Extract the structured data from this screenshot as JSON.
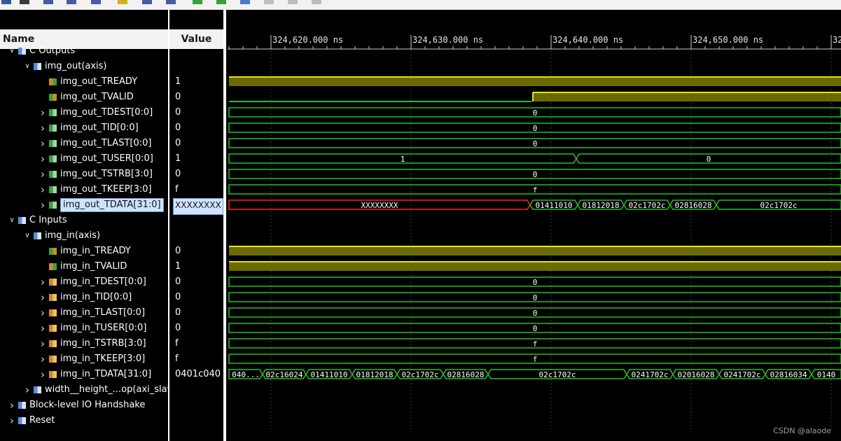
{
  "header": {
    "name_col": "Name",
    "value_col": "Value"
  },
  "timeline": {
    "ticks": [
      "324,620.000 ns",
      "324,630.000 ns",
      "324,640.000 ns",
      "324,650.000 ns",
      "32"
    ]
  },
  "rows": [
    {
      "name": "C Outputs",
      "value": "",
      "kind": "group",
      "indent": 0,
      "expander": "v",
      "icon": "group-icon"
    },
    {
      "name": "img_out(axis)",
      "value": "",
      "kind": "group",
      "indent": 1,
      "expander": "v",
      "icon": "group-icon"
    },
    {
      "name": "img_out_TREADY",
      "value": "1",
      "kind": "in",
      "indent": 2,
      "expander": "",
      "icon": "signal-in-icon"
    },
    {
      "name": "img_out_TVALID",
      "value": "0",
      "kind": "out",
      "indent": 2,
      "expander": "",
      "icon": "signal-out-icon"
    },
    {
      "name": "img_out_TDEST[0:0]",
      "value": "0",
      "kind": "bus-out",
      "indent": 2,
      "expander": ">",
      "icon": "bus-out-icon"
    },
    {
      "name": "img_out_TID[0:0]",
      "value": "0",
      "kind": "bus-out",
      "indent": 2,
      "expander": ">",
      "icon": "bus-out-icon"
    },
    {
      "name": "img_out_TLAST[0:0]",
      "value": "0",
      "kind": "bus-out",
      "indent": 2,
      "expander": ">",
      "icon": "bus-out-icon"
    },
    {
      "name": "img_out_TUSER[0:0]",
      "value": "1",
      "kind": "bus-out",
      "indent": 2,
      "expander": ">",
      "icon": "bus-out-icon"
    },
    {
      "name": "img_out_TSTRB[3:0]",
      "value": "0",
      "kind": "bus-out",
      "indent": 2,
      "expander": ">",
      "icon": "bus-out-icon"
    },
    {
      "name": "img_out_TKEEP[3:0]",
      "value": "f",
      "kind": "bus-out",
      "indent": 2,
      "expander": ">",
      "icon": "bus-out-icon"
    },
    {
      "name": "img_out_TDATA[31:0]",
      "value": "XXXXXXXX",
      "kind": "bus-out",
      "indent": 2,
      "expander": ">",
      "icon": "bus-out-icon",
      "selected": true
    },
    {
      "name": "C Inputs",
      "value": "",
      "kind": "group",
      "indent": 0,
      "expander": "v",
      "icon": "group-icon"
    },
    {
      "name": "img_in(axis)",
      "value": "",
      "kind": "group",
      "indent": 1,
      "expander": "v",
      "icon": "group-icon"
    },
    {
      "name": "img_in_TREADY",
      "value": "0",
      "kind": "out",
      "indent": 2,
      "expander": "",
      "icon": "signal-out-icon"
    },
    {
      "name": "img_in_TVALID",
      "value": "1",
      "kind": "in",
      "indent": 2,
      "expander": "",
      "icon": "signal-in-icon"
    },
    {
      "name": "img_in_TDEST[0:0]",
      "value": "0",
      "kind": "bus-in",
      "indent": 2,
      "expander": ">",
      "icon": "bus-in-icon"
    },
    {
      "name": "img_in_TID[0:0]",
      "value": "0",
      "kind": "bus-in",
      "indent": 2,
      "expander": ">",
      "icon": "bus-in-icon"
    },
    {
      "name": "img_in_TLAST[0:0]",
      "value": "0",
      "kind": "bus-in",
      "indent": 2,
      "expander": ">",
      "icon": "bus-in-icon"
    },
    {
      "name": "img_in_TUSER[0:0]",
      "value": "0",
      "kind": "bus-in",
      "indent": 2,
      "expander": ">",
      "icon": "bus-in-icon"
    },
    {
      "name": "img_in_TSTRB[3:0]",
      "value": "f",
      "kind": "bus-in",
      "indent": 2,
      "expander": ">",
      "icon": "bus-in-icon"
    },
    {
      "name": "img_in_TKEEP[3:0]",
      "value": "f",
      "kind": "bus-in",
      "indent": 2,
      "expander": ">",
      "icon": "bus-in-icon"
    },
    {
      "name": "img_in_TDATA[31:0]",
      "value": "0401c040",
      "kind": "bus-in",
      "indent": 2,
      "expander": ">",
      "icon": "bus-in-icon"
    },
    {
      "name": "width__height_...op(axi_slave",
      "value": "",
      "kind": "group",
      "indent": 1,
      "expander": ">",
      "icon": "group-icon"
    },
    {
      "name": "Block-level IO Handshake",
      "value": "",
      "kind": "group",
      "indent": 0,
      "expander": ">",
      "icon": "group-icon"
    },
    {
      "name": "Reset",
      "value": "",
      "kind": "group",
      "indent": 0,
      "expander": ">",
      "icon": "group-icon"
    }
  ],
  "waves": [
    null,
    null,
    {
      "type": "bit",
      "segments": [
        [
          324617.5,
          324675,
          1
        ]
      ]
    },
    {
      "type": "bit",
      "segments": [
        [
          324617.5,
          324639.2,
          0
        ],
        [
          324639.2,
          324675,
          1
        ]
      ]
    },
    {
      "type": "bus",
      "segments": [
        [
          324617.5,
          324675,
          "0"
        ]
      ]
    },
    {
      "type": "bus",
      "segments": [
        [
          324617.5,
          324675,
          "0"
        ]
      ]
    },
    {
      "type": "bus",
      "segments": [
        [
          324617.5,
          324675,
          "0"
        ]
      ]
    },
    {
      "type": "bus",
      "segments": [
        [
          324617.5,
          324642.4,
          "1"
        ],
        [
          324642.4,
          324675,
          "0"
        ]
      ]
    },
    {
      "type": "bus",
      "segments": [
        [
          324617.5,
          324675,
          "0"
        ]
      ]
    },
    {
      "type": "bus",
      "segments": [
        [
          324617.5,
          324675,
          "f"
        ]
      ]
    },
    {
      "type": "bus",
      "segments": [
        [
          324617.5,
          324639.1,
          "XXXXXXXX",
          "x"
        ],
        [
          324639.1,
          324642.5,
          "01411010"
        ],
        [
          324642.5,
          324645.8,
          "01812018"
        ],
        [
          324645.8,
          324649.1,
          "02c1702c"
        ],
        [
          324649.1,
          324652.4,
          "02816028"
        ],
        [
          324652.4,
          324675,
          "02c1702c"
        ]
      ]
    },
    null,
    null,
    {
      "type": "bit",
      "segments": [
        [
          324617.5,
          324675,
          1
        ]
      ]
    },
    {
      "type": "bit",
      "segments": [
        [
          324617.5,
          324675,
          1
        ]
      ]
    },
    {
      "type": "bus",
      "segments": [
        [
          324617.5,
          324675,
          "0"
        ]
      ]
    },
    {
      "type": "bus",
      "segments": [
        [
          324617.5,
          324675,
          "0"
        ]
      ]
    },
    {
      "type": "bus",
      "segments": [
        [
          324617.5,
          324675,
          "0"
        ]
      ]
    },
    {
      "type": "bus",
      "segments": [
        [
          324617.5,
          324675,
          "0"
        ]
      ]
    },
    {
      "type": "bus",
      "segments": [
        [
          324617.5,
          324675,
          "f"
        ]
      ]
    },
    {
      "type": "bus",
      "segments": [
        [
          324617.5,
          324675,
          "f"
        ]
      ]
    },
    {
      "type": "bus",
      "segments": [
        [
          324617.5,
          324620.0,
          "040..."
        ],
        [
          324620.0,
          324623.1,
          "02c16024"
        ],
        [
          324623.1,
          324626.4,
          "01411010"
        ],
        [
          324626.4,
          324629.6,
          "01812018"
        ],
        [
          324629.6,
          324632.9,
          "02c1702c"
        ],
        [
          324632.9,
          324636.1,
          "02816028"
        ],
        [
          324636.1,
          324646.0,
          "02c1702c"
        ],
        [
          324646.0,
          324649.3,
          "0241702c"
        ],
        [
          324649.3,
          324652.6,
          "02016028"
        ],
        [
          324652.6,
          324655.9,
          "0241702c"
        ],
        [
          324655.9,
          324659.2,
          "02816034"
        ],
        [
          324659.2,
          324675,
          "0140"
        ]
      ]
    },
    null,
    null,
    null
  ],
  "colors": {
    "bus": "#22c022",
    "bit_fill": "#6a6a00",
    "bit_edge": "#e6e600",
    "x_state": "#ff2020",
    "bg": "#000000"
  },
  "watermark": "CSDN @alaode"
}
